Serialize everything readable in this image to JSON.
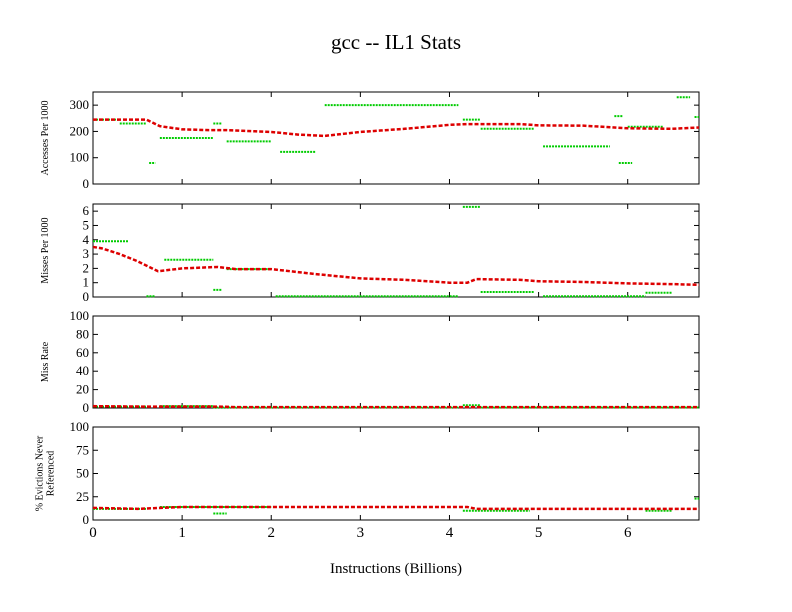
{
  "chart_data": {
    "title": "gcc -- IL1  Stats",
    "xlabel": "Instructions (Billions)",
    "xlim": [
      0,
      6.8
    ],
    "xticks": [
      "0",
      "1",
      "2",
      "3",
      "4",
      "5",
      "6"
    ],
    "colors": {
      "mean": "#dd0000",
      "raw": "#00cc00"
    },
    "panels": [
      {
        "type": "line",
        "ylabel": [
          "Accesses Per 1000"
        ],
        "ylim": [
          0,
          350
        ],
        "yticks": [
          0,
          100,
          200,
          300
        ],
        "mean": [
          [
            0,
            245
          ],
          [
            0.6,
            245
          ],
          [
            0.75,
            220
          ],
          [
            1,
            208
          ],
          [
            1.3,
            205
          ],
          [
            1.5,
            205
          ],
          [
            2,
            198
          ],
          [
            2.3,
            188
          ],
          [
            2.6,
            183
          ],
          [
            3,
            198
          ],
          [
            3.5,
            210
          ],
          [
            4,
            225
          ],
          [
            4.2,
            228
          ],
          [
            4.8,
            228
          ],
          [
            5,
            223
          ],
          [
            5.5,
            222
          ],
          [
            6,
            212
          ],
          [
            6.5,
            210
          ],
          [
            6.8,
            215
          ]
        ],
        "raw_segments": [
          [
            0,
            0.3,
            245
          ],
          [
            0.3,
            0.6,
            230
          ],
          [
            0.63,
            0.7,
            80
          ],
          [
            0.75,
            1.35,
            175
          ],
          [
            1.35,
            1.45,
            230
          ],
          [
            1.5,
            2.0,
            162
          ],
          [
            2.1,
            2.5,
            122
          ],
          [
            2.6,
            4.1,
            300
          ],
          [
            4.15,
            4.35,
            245
          ],
          [
            4.35,
            4.95,
            210
          ],
          [
            5.05,
            5.8,
            143
          ],
          [
            5.9,
            6.05,
            80
          ],
          [
            5.85,
            5.95,
            258
          ],
          [
            6.0,
            6.4,
            218
          ],
          [
            6.55,
            6.7,
            330
          ],
          [
            6.75,
            6.8,
            255
          ]
        ]
      },
      {
        "type": "line",
        "ylabel": [
          "Misses Per 1000"
        ],
        "ylim": [
          0,
          6.5
        ],
        "yticks": [
          0,
          1,
          2,
          3,
          4,
          5,
          6
        ],
        "mean": [
          [
            0,
            3.5
          ],
          [
            0.1,
            3.4
          ],
          [
            0.3,
            3.0
          ],
          [
            0.5,
            2.5
          ],
          [
            0.73,
            1.8
          ],
          [
            1,
            2.0
          ],
          [
            1.4,
            2.1
          ],
          [
            1.6,
            1.95
          ],
          [
            2,
            1.95
          ],
          [
            2.5,
            1.6
          ],
          [
            3,
            1.3
          ],
          [
            3.5,
            1.2
          ],
          [
            4,
            1.0
          ],
          [
            4.2,
            1.0
          ],
          [
            4.3,
            1.25
          ],
          [
            4.8,
            1.2
          ],
          [
            5,
            1.1
          ],
          [
            5.5,
            1.05
          ],
          [
            6,
            0.95
          ],
          [
            6.5,
            0.9
          ],
          [
            6.8,
            0.85
          ]
        ],
        "raw_segments": [
          [
            0,
            0.4,
            3.9
          ],
          [
            0.8,
            1.35,
            2.6
          ],
          [
            1.5,
            2.0,
            1.95
          ],
          [
            2.05,
            4.1,
            0.05
          ],
          [
            4.15,
            4.35,
            6.3
          ],
          [
            4.35,
            4.95,
            0.35
          ],
          [
            5.05,
            6.2,
            0.05
          ],
          [
            6.2,
            6.5,
            0.3
          ],
          [
            0.6,
            0.7,
            0.05
          ],
          [
            1.35,
            1.45,
            0.5
          ]
        ]
      },
      {
        "type": "line",
        "ylabel": [
          "Miss Rate"
        ],
        "ylim": [
          0,
          100
        ],
        "yticks": [
          0,
          20,
          40,
          60,
          80,
          100
        ],
        "mean": [
          [
            0,
            2
          ],
          [
            0.6,
            1.5
          ],
          [
            1.4,
            1.5
          ],
          [
            1.6,
            1
          ],
          [
            6.8,
            1
          ]
        ],
        "raw_segments": [
          [
            0,
            0.6,
            1.5
          ],
          [
            0.75,
            1.35,
            2
          ],
          [
            1.35,
            4.1,
            0.5
          ],
          [
            4.15,
            4.35,
            3
          ],
          [
            4.35,
            6.8,
            0.5
          ]
        ]
      },
      {
        "type": "line",
        "ylabel": [
          "% Evictions Never",
          "Referenced"
        ],
        "ylim": [
          0,
          100
        ],
        "yticks": [
          0,
          25,
          50,
          75,
          100
        ],
        "mean": [
          [
            0,
            13
          ],
          [
            0.5,
            12
          ],
          [
            1,
            14
          ],
          [
            2,
            14
          ],
          [
            4.2,
            14
          ],
          [
            4.3,
            12
          ],
          [
            6.8,
            12
          ]
        ],
        "raw_segments": [
          [
            0,
            0.6,
            12
          ],
          [
            0.75,
            2.0,
            14
          ],
          [
            1.35,
            1.5,
            7
          ],
          [
            4.15,
            4.9,
            10
          ],
          [
            6.2,
            6.5,
            10
          ],
          [
            6.75,
            6.8,
            23
          ]
        ]
      }
    ]
  }
}
